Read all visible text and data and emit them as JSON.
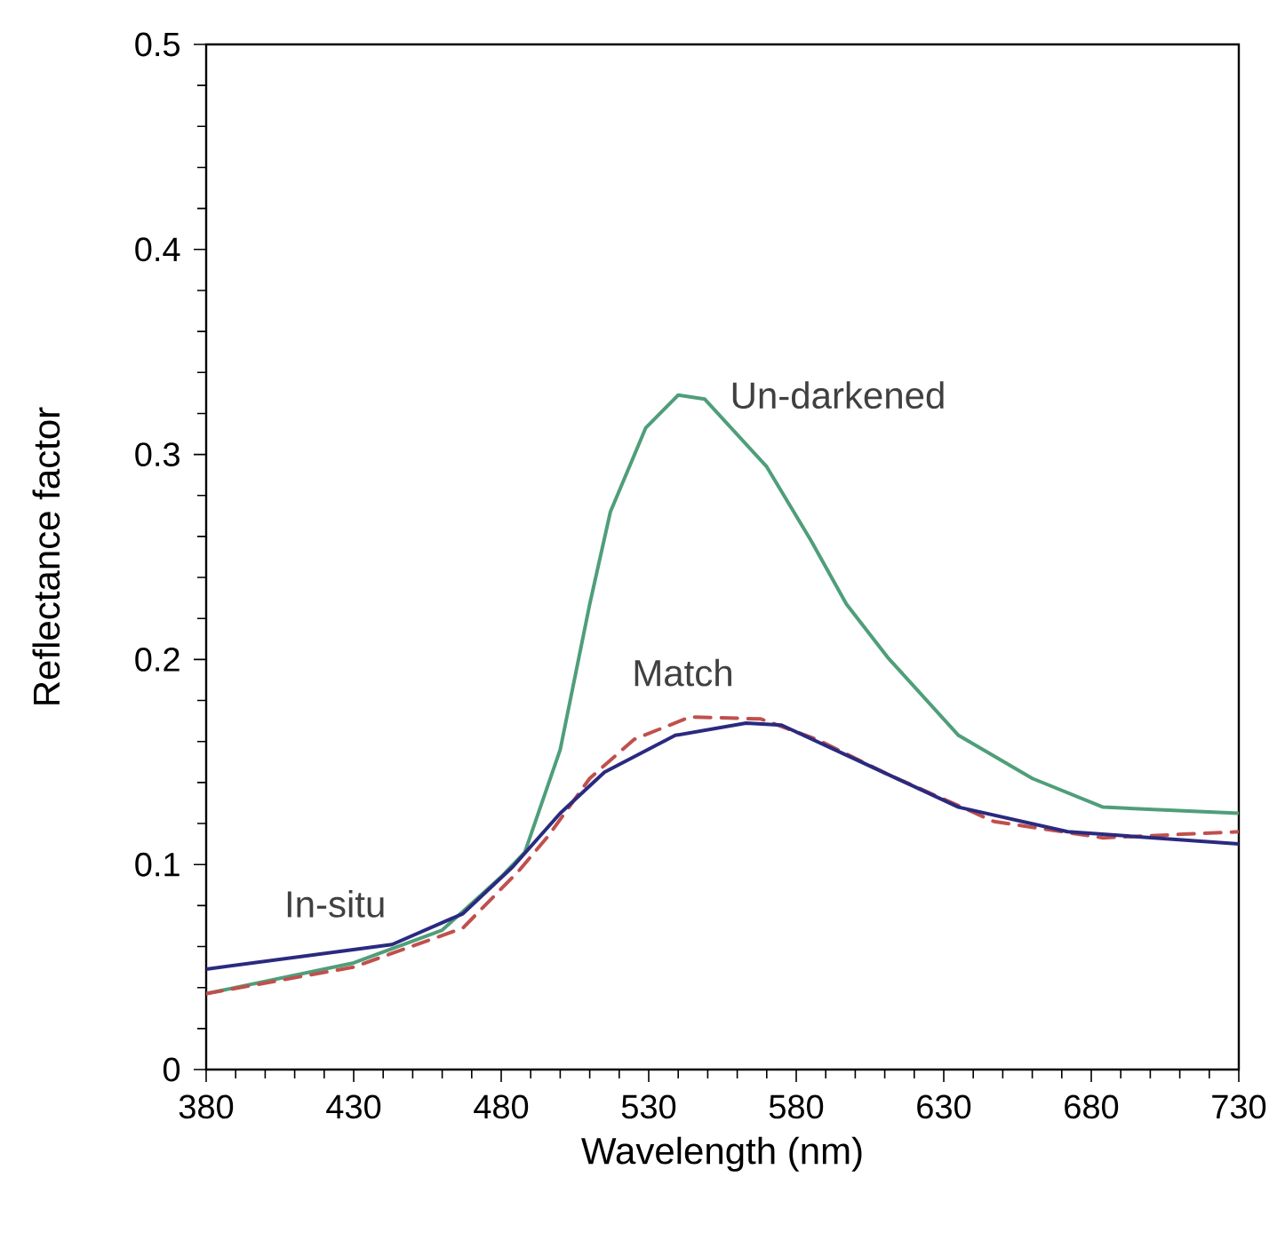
{
  "chart_data": {
    "type": "line",
    "xlabel": "Wavelength (nm)",
    "ylabel": "Reflectance factor",
    "xlim": [
      380,
      730
    ],
    "ylim": [
      0,
      0.5
    ],
    "xticks": [
      380,
      430,
      480,
      530,
      580,
      630,
      680,
      730
    ],
    "yticks": [
      {
        "value": 0,
        "label": "0"
      },
      0.1,
      0.2,
      0.3,
      0.4,
      0.5
    ],
    "grid": false,
    "legend": false,
    "marker": "none",
    "series": [
      {
        "name": "Un-darkened",
        "color": "#4f9e7a",
        "line_style": "solid",
        "x": [
          380,
          430,
          460,
          480,
          488,
          500,
          510,
          517,
          529,
          540,
          549,
          570,
          585,
          597,
          611,
          635,
          660,
          684,
          730
        ],
        "values": [
          0.037,
          0.052,
          0.068,
          0.094,
          0.106,
          0.156,
          0.227,
          0.272,
          0.313,
          0.329,
          0.327,
          0.294,
          0.258,
          0.227,
          0.201,
          0.163,
          0.142,
          0.128,
          0.125
        ]
      },
      {
        "name": "Match",
        "color": "#c0504d",
        "line_style": "dashed",
        "x": [
          380,
          430,
          467,
          486,
          496,
          510,
          525,
          544,
          568,
          587,
          611,
          647,
          684,
          730
        ],
        "values": [
          0.037,
          0.05,
          0.069,
          0.097,
          0.114,
          0.142,
          0.161,
          0.172,
          0.171,
          0.161,
          0.144,
          0.121,
          0.113,
          0.116
        ]
      },
      {
        "name": "In-situ",
        "color": "#2a2a80",
        "line_style": "solid",
        "x": [
          380,
          443,
          467,
          484,
          500,
          515,
          539,
          563,
          575,
          599,
          635,
          672,
          730
        ],
        "values": [
          0.049,
          0.061,
          0.076,
          0.099,
          0.125,
          0.145,
          0.163,
          0.169,
          0.168,
          0.152,
          0.128,
          0.116,
          0.11
        ]
      }
    ]
  }
}
